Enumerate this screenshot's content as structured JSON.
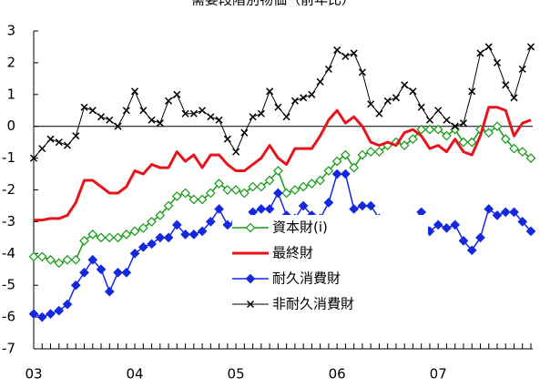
{
  "chart_data": {
    "type": "line",
    "title": "需要段階別物価（前年比）",
    "categories": [
      "03",
      null,
      null,
      null,
      null,
      null,
      null,
      null,
      null,
      null,
      null,
      null,
      "04",
      null,
      null,
      null,
      null,
      null,
      null,
      null,
      null,
      null,
      null,
      null,
      "05",
      null,
      null,
      null,
      null,
      null,
      null,
      null,
      null,
      null,
      null,
      null,
      "06",
      null,
      null,
      null,
      null,
      null,
      null,
      null,
      null,
      null,
      null,
      null,
      "07",
      null,
      null,
      null,
      null,
      null,
      null,
      null,
      null,
      null,
      null,
      null
    ],
    "series": [
      {
        "name": "資本財(i)",
        "color": "#129c12",
        "marker": "diamond-open",
        "width": 1.5,
        "values": [
          -4.1,
          -4.1,
          -4.2,
          -4.3,
          -4.2,
          -4.2,
          -3.6,
          -3.4,
          -3.5,
          -3.5,
          -3.5,
          -3.4,
          -3.3,
          -3.2,
          -3.0,
          -2.8,
          -2.5,
          -2.2,
          -2.1,
          -2.3,
          -2.3,
          -2.1,
          -1.8,
          -2.0,
          -2.0,
          -2.1,
          -1.9,
          -1.9,
          -1.7,
          -1.4,
          -2.1,
          -2.0,
          -1.9,
          -1.8,
          -1.7,
          -1.4,
          -1.1,
          -0.9,
          -1.3,
          -0.9,
          -0.8,
          -0.8,
          -0.6,
          -0.5,
          -0.6,
          -0.4,
          -0.1,
          -0.1,
          -0.1,
          -0.3,
          -0.1,
          -0.5,
          -0.5,
          -0.1,
          -0.2,
          0.0,
          -0.4,
          -0.7,
          -0.8,
          -1.0
        ]
      },
      {
        "name": "最終財",
        "color": "#e8141c",
        "marker": "none",
        "width": 3,
        "values": [
          -2.95,
          -2.95,
          -2.9,
          -2.9,
          -2.8,
          -2.4,
          -1.7,
          -1.7,
          -1.9,
          -2.1,
          -2.1,
          -1.9,
          -1.4,
          -1.5,
          -1.2,
          -1.3,
          -1.3,
          -0.8,
          -1.1,
          -0.9,
          -1.3,
          -0.9,
          -0.9,
          -1.2,
          -1.4,
          -1.4,
          -1.2,
          -1.0,
          -0.6,
          -1.0,
          -1.2,
          -0.7,
          -0.7,
          -0.7,
          -0.3,
          0.2,
          0.5,
          0.1,
          0.3,
          0.0,
          -0.5,
          -0.6,
          -0.5,
          -0.6,
          -0.2,
          -0.1,
          -0.3,
          -0.7,
          -0.6,
          -0.8,
          -0.4,
          -0.8,
          -0.9,
          -0.3,
          0.6,
          0.6,
          0.5,
          -0.3,
          0.1,
          0.2
        ]
      },
      {
        "name": "耐久消費財",
        "color": "#1428e0",
        "marker": "diamond",
        "width": 1.5,
        "values": [
          -5.9,
          -6.0,
          -5.9,
          -5.8,
          -5.6,
          -5.0,
          -4.6,
          -4.2,
          -4.5,
          -5.2,
          -4.6,
          -4.6,
          -4.0,
          -3.8,
          -3.7,
          -3.5,
          -3.5,
          -3.1,
          -3.4,
          -3.4,
          -3.3,
          -3.0,
          -2.6,
          -3.1,
          -3.0,
          -3.3,
          -2.7,
          -2.6,
          -2.6,
          -2.1,
          -2.8,
          -2.9,
          -2.5,
          -2.8,
          -2.9,
          -2.4,
          -1.5,
          -1.5,
          -2.6,
          -2.5,
          -2.5,
          -2.9,
          -3.3,
          -3.0,
          -3.2,
          -3.0,
          -2.7,
          -3.3,
          -3.1,
          -3.2,
          -3.1,
          -3.6,
          -3.9,
          -3.5,
          -2.6,
          -2.8,
          -2.7,
          -2.7,
          -3.0,
          -3.3
        ]
      },
      {
        "name": "非耐久消費財",
        "color": "#000000",
        "marker": "x",
        "width": 1,
        "values": [
          -1.0,
          -0.7,
          -0.4,
          -0.5,
          -0.6,
          -0.3,
          0.6,
          0.5,
          0.3,
          0.2,
          0.0,
          0.5,
          1.1,
          0.5,
          0.2,
          0.1,
          0.8,
          1.0,
          0.4,
          0.4,
          0.5,
          0.3,
          0.2,
          -0.4,
          -0.8,
          -0.2,
          0.3,
          0.4,
          1.1,
          0.6,
          0.3,
          0.8,
          0.9,
          1.0,
          1.4,
          1.8,
          2.4,
          2.2,
          2.3,
          1.7,
          0.7,
          0.4,
          0.8,
          0.9,
          1.3,
          1.1,
          0.6,
          0.2,
          0.5,
          0.2,
          0.0,
          0.1,
          1.1,
          2.3,
          2.5,
          2.0,
          1.3,
          0.9,
          1.8,
          2.5
        ]
      }
    ],
    "ylim": [
      -7,
      3
    ],
    "yticks": [
      -7,
      -6,
      -5,
      -4,
      -3,
      -2,
      -1,
      0,
      1,
      2,
      3
    ]
  }
}
